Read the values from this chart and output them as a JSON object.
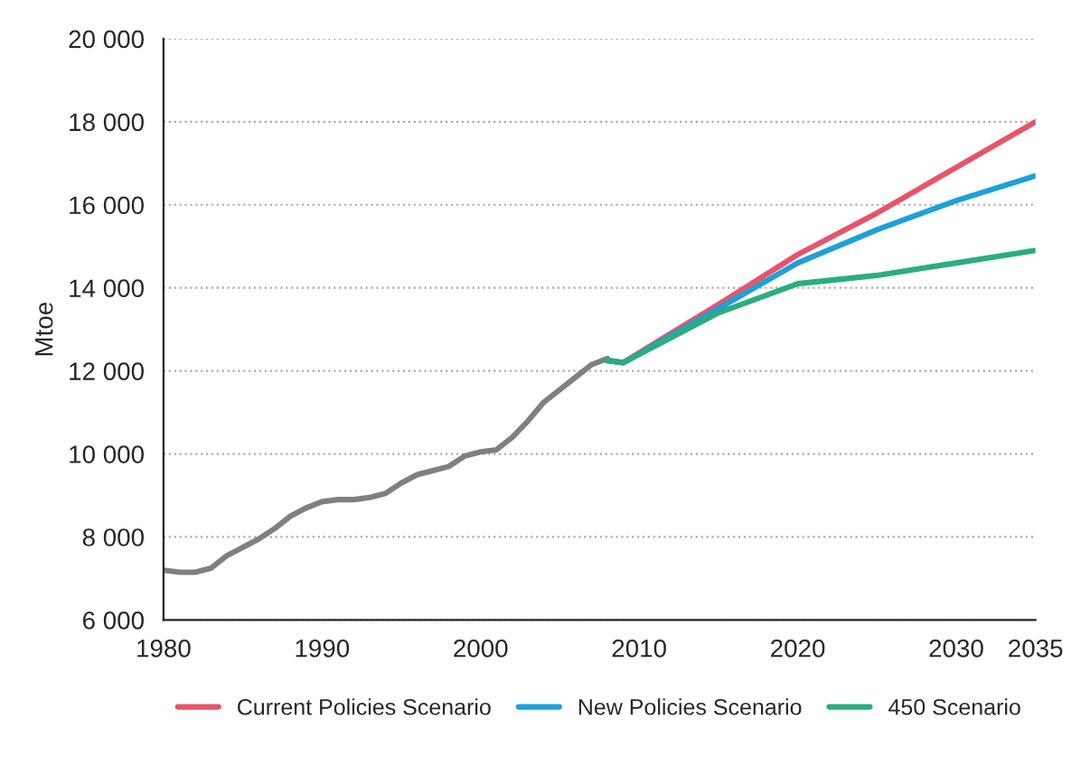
{
  "chart_data": {
    "type": "line",
    "ylabel": "Mtoe",
    "xlim": [
      1980,
      2035
    ],
    "xticks": [
      1980,
      1990,
      2000,
      2010,
      2020,
      2030,
      2035
    ],
    "ylim": [
      6000,
      20000
    ],
    "yticks": [
      {
        "value": 6000,
        "label": "6 000"
      },
      {
        "value": 8000,
        "label": "8 000"
      },
      {
        "value": 10000,
        "label": "10 000"
      },
      {
        "value": 12000,
        "label": "12 000"
      },
      {
        "value": 14000,
        "label": "14 000"
      },
      {
        "value": 16000,
        "label": "16 000"
      },
      {
        "value": 18000,
        "label": "18 000"
      },
      {
        "value": 20000,
        "label": "20 000"
      }
    ],
    "grid": "y",
    "legend": "bottom",
    "line_style": "solid",
    "series": [
      {
        "color": "#808080",
        "x": [
          1980,
          1981,
          1982,
          1983,
          1984,
          1985,
          1986,
          1987,
          1988,
          1989,
          1990,
          1991,
          1992,
          1993,
          1994,
          1995,
          1996,
          1997,
          1998,
          1999,
          2000,
          2001,
          2002,
          2003,
          2004,
          2005,
          2006,
          2007,
          2008
        ],
        "values": [
          7200,
          7150,
          7150,
          7250,
          7550,
          7750,
          7950,
          8200,
          8500,
          8700,
          8850,
          8900,
          8900,
          8950,
          9050,
          9300,
          9500,
          9600,
          9700,
          9950,
          10050,
          10100,
          10400,
          10800,
          11250,
          11550,
          11850,
          12150,
          12300
        ]
      },
      {
        "name": "Current Policies Scenario",
        "color": "#e8546a",
        "x": [
          2008,
          2009,
          2015,
          2020,
          2025,
          2030,
          2035
        ],
        "values": [
          12250,
          12200,
          13600,
          14800,
          15800,
          16900,
          18000
        ]
      },
      {
        "name": "New Policies Scenario",
        "color": "#1ea0d8",
        "x": [
          2008,
          2009,
          2015,
          2020,
          2025,
          2030,
          2035
        ],
        "values": [
          12250,
          12200,
          13500,
          14600,
          15400,
          16100,
          16700
        ]
      },
      {
        "name": "450 Scenario",
        "color": "#2bad80",
        "x": [
          2008,
          2009,
          2015,
          2020,
          2025,
          2030,
          2035
        ],
        "values": [
          12250,
          12200,
          13400,
          14100,
          14300,
          14600,
          14900
        ]
      }
    ]
  }
}
